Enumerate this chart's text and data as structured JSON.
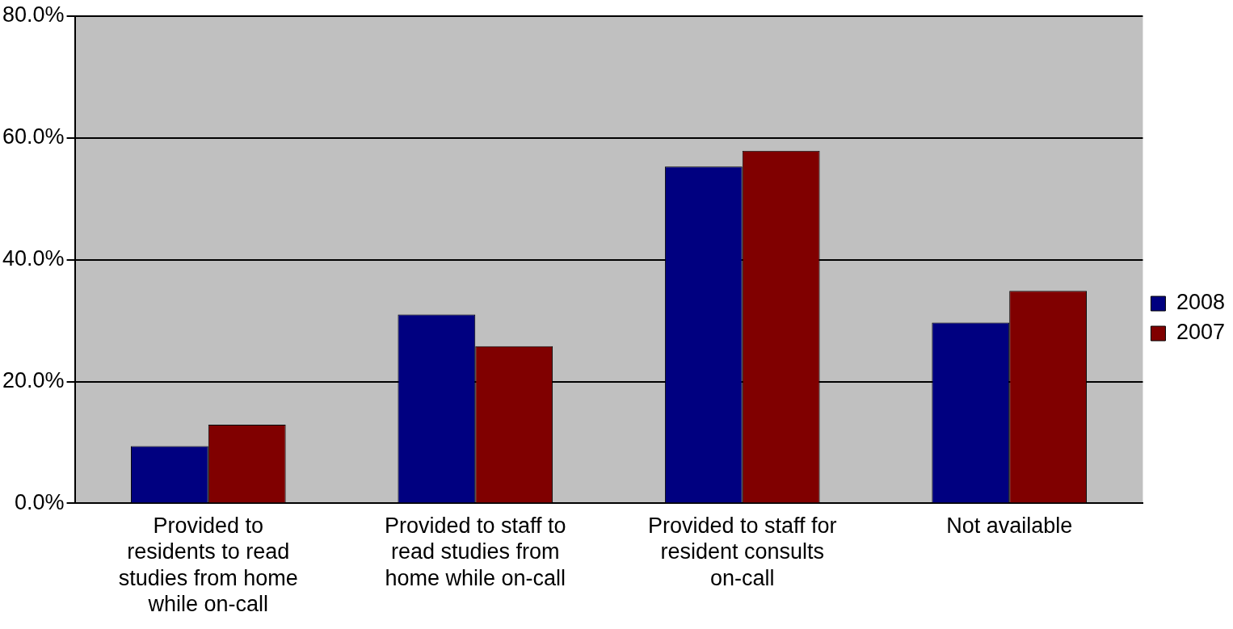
{
  "chart_data": {
    "type": "bar",
    "categories": [
      "Provided to residents to read studies from home while on-call",
      "Provided to staff to read studies from home while on-call",
      "Provided to staff for resident consults on-call",
      "Not available"
    ],
    "series": [
      {
        "name": "2008",
        "color": "#000080",
        "values": [
          9.4,
          31.0,
          55.3,
          29.7
        ]
      },
      {
        "name": "2007",
        "color": "#800000",
        "values": [
          12.9,
          25.8,
          57.9,
          34.9
        ]
      }
    ],
    "ylim": [
      0,
      80
    ],
    "yticks": [
      {
        "value": 0,
        "label": "0.0%"
      },
      {
        "value": 20,
        "label": "20.0%"
      },
      {
        "value": 40,
        "label": "40.0%"
      },
      {
        "value": 60,
        "label": "60.0%"
      },
      {
        "value": 80,
        "label": "80.0%"
      }
    ],
    "grid": "y",
    "legend": "right"
  }
}
